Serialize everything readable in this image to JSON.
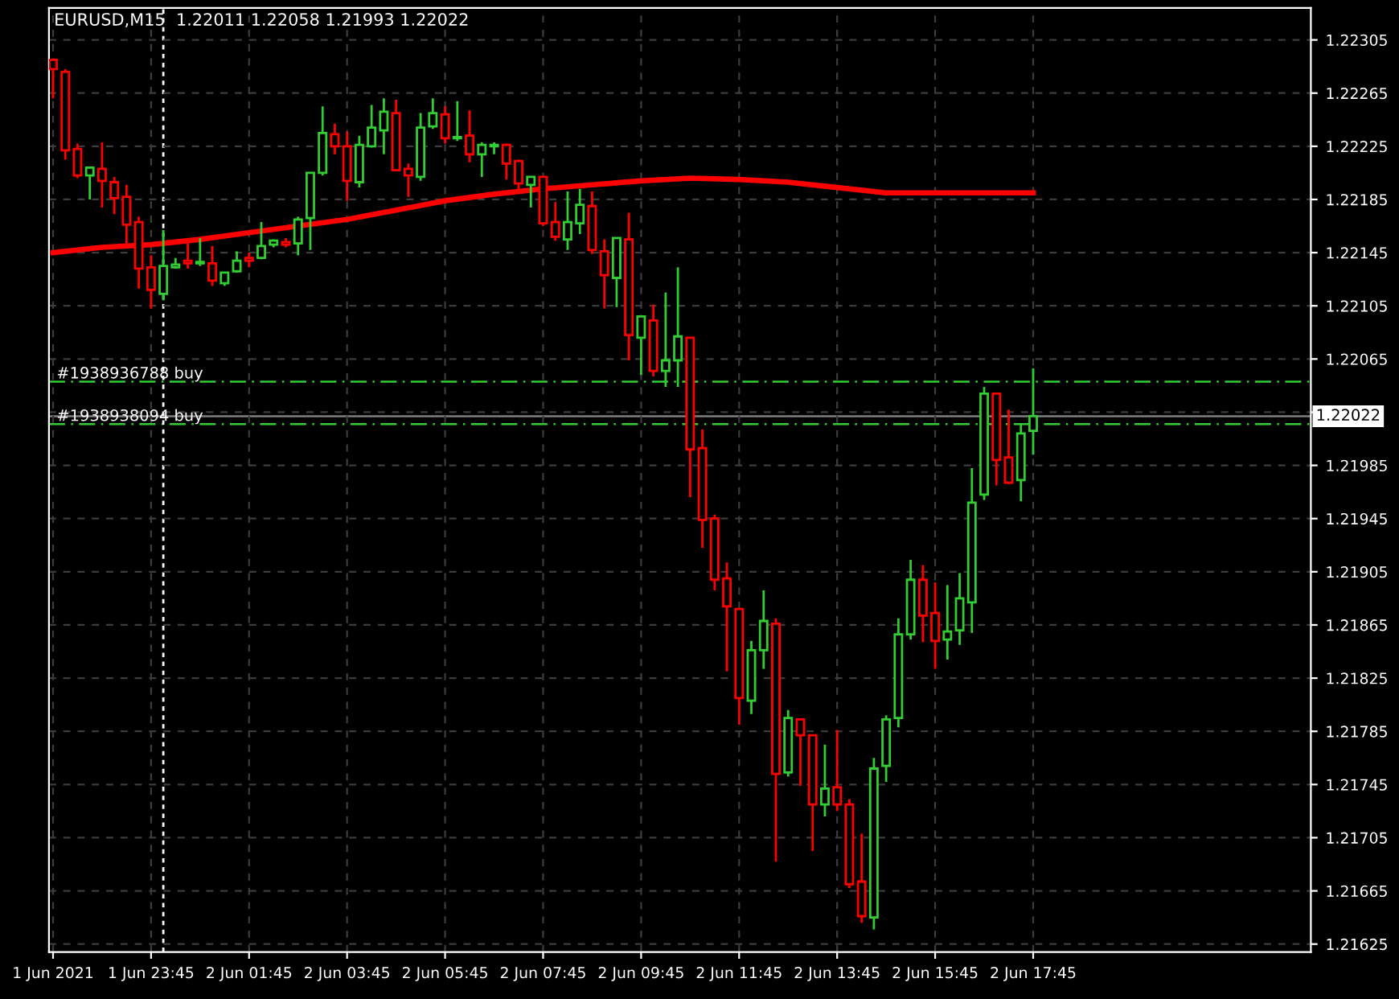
{
  "chart_data": {
    "type": "candlestick",
    "title": "EURUSD,M15  1.22011 1.22058 1.21993 1.22022",
    "x": [
      "2021-06-01T21:45",
      "2021-06-01T22:00",
      "2021-06-01T22:15",
      "2021-06-01T22:30",
      "2021-06-01T22:45",
      "2021-06-01T23:00",
      "2021-06-01T23:15",
      "2021-06-01T23:30",
      "2021-06-01T23:45",
      "2021-06-02T00:00",
      "2021-06-02T00:15",
      "2021-06-02T00:30",
      "2021-06-02T00:45",
      "2021-06-02T01:00",
      "2021-06-02T01:15",
      "2021-06-02T01:30",
      "2021-06-02T01:45",
      "2021-06-02T02:00",
      "2021-06-02T02:15",
      "2021-06-02T02:30",
      "2021-06-02T02:45",
      "2021-06-02T03:00",
      "2021-06-02T03:15",
      "2021-06-02T03:30",
      "2021-06-02T03:45",
      "2021-06-02T04:00",
      "2021-06-02T04:15",
      "2021-06-02T04:30",
      "2021-06-02T04:45",
      "2021-06-02T05:00",
      "2021-06-02T05:15",
      "2021-06-02T05:30",
      "2021-06-02T05:45",
      "2021-06-02T06:00",
      "2021-06-02T06:15",
      "2021-06-02T06:30",
      "2021-06-02T06:45",
      "2021-06-02T07:00",
      "2021-06-02T07:15",
      "2021-06-02T07:30",
      "2021-06-02T07:45",
      "2021-06-02T08:00",
      "2021-06-02T08:15",
      "2021-06-02T08:30",
      "2021-06-02T08:45",
      "2021-06-02T09:00",
      "2021-06-02T09:15",
      "2021-06-02T09:30",
      "2021-06-02T09:45",
      "2021-06-02T10:00",
      "2021-06-02T10:15",
      "2021-06-02T10:30",
      "2021-06-02T10:45",
      "2021-06-02T11:00",
      "2021-06-02T11:15",
      "2021-06-02T11:30",
      "2021-06-02T11:45",
      "2021-06-02T12:00",
      "2021-06-02T12:15",
      "2021-06-02T12:30",
      "2021-06-02T12:45",
      "2021-06-02T13:00",
      "2021-06-02T13:15",
      "2021-06-02T13:30",
      "2021-06-02T13:45",
      "2021-06-02T14:00",
      "2021-06-02T14:15",
      "2021-06-02T14:30",
      "2021-06-02T14:45",
      "2021-06-02T15:00",
      "2021-06-02T15:15",
      "2021-06-02T15:30",
      "2021-06-02T15:45",
      "2021-06-02T16:00",
      "2021-06-02T16:15",
      "2021-06-02T16:30",
      "2021-06-02T16:45",
      "2021-06-02T17:00",
      "2021-06-02T17:15",
      "2021-06-02T17:30",
      "2021-06-02T17:45"
    ],
    "ohlc": [
      [
        1.2229,
        1.22291,
        1.22261,
        1.22283
      ],
      [
        1.22281,
        1.22283,
        1.22215,
        1.22222
      ],
      [
        1.22223,
        1.22227,
        1.22201,
        1.22203
      ],
      [
        1.22203,
        1.22209,
        1.22185,
        1.22209
      ],
      [
        1.22208,
        1.22228,
        1.22179,
        1.22199
      ],
      [
        1.22198,
        1.22202,
        1.22174,
        1.22186
      ],
      [
        1.22187,
        1.22196,
        1.22151,
        1.22166
      ],
      [
        1.22168,
        1.22172,
        1.22118,
        1.22133
      ],
      [
        1.22134,
        1.22143,
        1.22103,
        1.22117
      ],
      [
        1.22114,
        1.22162,
        1.22109,
        1.22135
      ],
      [
        1.22134,
        1.22141,
        1.22133,
        1.22136
      ],
      [
        1.22139,
        1.22155,
        1.22133,
        1.22137
      ],
      [
        1.22137,
        1.22156,
        1.22135,
        1.22138
      ],
      [
        1.22137,
        1.2215,
        1.2212,
        1.22124
      ],
      [
        1.22122,
        1.2213,
        1.2212,
        1.2213
      ],
      [
        1.22131,
        1.22146,
        1.2213,
        1.22139
      ],
      [
        1.22141,
        1.22145,
        1.22134,
        1.22139
      ],
      [
        1.22141,
        1.22168,
        1.2214,
        1.2215
      ],
      [
        1.22151,
        1.22155,
        1.22149,
        1.22154
      ],
      [
        1.22153,
        1.22156,
        1.22149,
        1.22151
      ],
      [
        1.22152,
        1.22172,
        1.22143,
        1.2217
      ],
      [
        1.22171,
        1.22205,
        1.22147,
        1.22205
      ],
      [
        1.22205,
        1.22255,
        1.22203,
        1.22235
      ],
      [
        1.22234,
        1.22242,
        1.22219,
        1.22225
      ],
      [
        1.22225,
        1.22236,
        1.22184,
        1.22199
      ],
      [
        1.22198,
        1.22233,
        1.22194,
        1.22226
      ],
      [
        1.22225,
        1.22256,
        1.22224,
        1.22239
      ],
      [
        1.22237,
        1.22261,
        1.22219,
        1.22251
      ],
      [
        1.2225,
        1.2226,
        1.22207,
        1.22207
      ],
      [
        1.22208,
        1.22212,
        1.22187,
        1.22203
      ],
      [
        1.22202,
        1.2225,
        1.22199,
        1.22239
      ],
      [
        1.2224,
        1.22261,
        1.22238,
        1.2225
      ],
      [
        1.22249,
        1.22255,
        1.22227,
        1.22231
      ],
      [
        1.22231,
        1.22259,
        1.22229,
        1.22232
      ],
      [
        1.22233,
        1.22252,
        1.22213,
        1.22219
      ],
      [
        1.22219,
        1.22228,
        1.22202,
        1.22226
      ],
      [
        1.22225,
        1.22228,
        1.22219,
        1.22226
      ],
      [
        1.22226,
        1.22227,
        1.222,
        1.22212
      ],
      [
        1.22214,
        1.22215,
        1.22192,
        1.22197
      ],
      [
        1.22196,
        1.22202,
        1.22179,
        1.22202
      ],
      [
        1.22202,
        1.22203,
        1.22165,
        1.22167
      ],
      [
        1.22168,
        1.22183,
        1.22154,
        1.22157
      ],
      [
        1.22155,
        1.22191,
        1.22147,
        1.22168
      ],
      [
        1.22167,
        1.22193,
        1.22159,
        1.22181
      ],
      [
        1.2218,
        1.22191,
        1.22144,
        1.22147
      ],
      [
        1.22146,
        1.22155,
        1.22103,
        1.22128
      ],
      [
        1.22126,
        1.22156,
        1.22104,
        1.22156
      ],
      [
        1.22155,
        1.22175,
        1.22064,
        1.22083
      ],
      [
        1.22081,
        1.22098,
        1.22053,
        1.22097
      ],
      [
        1.22094,
        1.22106,
        1.22052,
        1.22056
      ],
      [
        1.22056,
        1.22115,
        1.22044,
        1.22064
      ],
      [
        1.22064,
        1.22134,
        1.22044,
        1.22082
      ],
      [
        1.22081,
        1.22081,
        1.21961,
        1.21997
      ],
      [
        1.21998,
        1.22012,
        1.21923,
        1.21944
      ],
      [
        1.21945,
        1.21948,
        1.21891,
        1.21899
      ],
      [
        1.219,
        1.21912,
        1.2183,
        1.21879
      ],
      [
        1.21877,
        1.21877,
        1.2179,
        1.2181
      ],
      [
        1.21808,
        1.21853,
        1.21798,
        1.21846
      ],
      [
        1.21846,
        1.21891,
        1.21832,
        1.21868
      ],
      [
        1.21866,
        1.2187,
        1.21687,
        1.21753
      ],
      [
        1.21754,
        1.21801,
        1.21751,
        1.21795
      ],
      [
        1.21794,
        1.21794,
        1.21744,
        1.21782
      ],
      [
        1.21782,
        1.21782,
        1.21695,
        1.2173
      ],
      [
        1.2173,
        1.21775,
        1.21721,
        1.21742
      ],
      [
        1.21743,
        1.21786,
        1.21725,
        1.2173
      ],
      [
        1.2173,
        1.21734,
        1.21667,
        1.2167
      ],
      [
        1.21672,
        1.21708,
        1.21641,
        1.21646
      ],
      [
        1.21645,
        1.21765,
        1.21636,
        1.21757
      ],
      [
        1.21759,
        1.21797,
        1.21747,
        1.21794
      ],
      [
        1.21795,
        1.2187,
        1.21788,
        1.21858
      ],
      [
        1.21858,
        1.21914,
        1.21854,
        1.21899
      ],
      [
        1.21899,
        1.2191,
        1.21852,
        1.21872
      ],
      [
        1.21874,
        1.21897,
        1.21832,
        1.21853
      ],
      [
        1.21854,
        1.21895,
        1.21839,
        1.2186
      ],
      [
        1.21861,
        1.21904,
        1.2185,
        1.21885
      ],
      [
        1.21882,
        1.21983,
        1.21859,
        1.21957
      ],
      [
        1.21963,
        1.22044,
        1.21959,
        1.22039
      ],
      [
        1.22039,
        1.22039,
        1.2197,
        1.21989
      ],
      [
        1.21991,
        1.22027,
        1.21971,
        1.21972
      ],
      [
        1.21974,
        1.22016,
        1.21958,
        1.22009
      ],
      [
        1.22011,
        1.22058,
        1.21993,
        1.22022
      ]
    ],
    "colors": [
      "#ff0000",
      "#ff0000",
      "#ff0000",
      "#32cd32",
      "#ff0000",
      "#ff0000",
      "#ff0000",
      "#ff0000",
      "#ff0000",
      "#32cd32",
      "#32cd32",
      "#ff0000",
      "#32cd32",
      "#ff0000",
      "#32cd32",
      "#32cd32",
      "#ff0000",
      "#32cd32",
      "#32cd32",
      "#ff0000",
      "#32cd32",
      "#32cd32",
      "#32cd32",
      "#ff0000",
      "#ff0000",
      "#32cd32",
      "#32cd32",
      "#32cd32",
      "#ff0000",
      "#ff0000",
      "#32cd32",
      "#32cd32",
      "#ff0000",
      "#32cd32",
      "#ff0000",
      "#32cd32",
      "#32cd32",
      "#ff0000",
      "#ff0000",
      "#32cd32",
      "#ff0000",
      "#ff0000",
      "#32cd32",
      "#32cd32",
      "#ff0000",
      "#ff0000",
      "#32cd32",
      "#ff0000",
      "#32cd32",
      "#ff0000",
      "#32cd32",
      "#32cd32",
      "#ff0000",
      "#ff0000",
      "#ff0000",
      "#ff0000",
      "#ff0000",
      "#32cd32",
      "#32cd32",
      "#ff0000",
      "#32cd32",
      "#ff0000",
      "#ff0000",
      "#32cd32",
      "#ff0000",
      "#ff0000",
      "#ff0000",
      "#32cd32",
      "#32cd32",
      "#32cd32",
      "#32cd32",
      "#ff0000",
      "#ff0000",
      "#32cd32",
      "#32cd32",
      "#32cd32",
      "#32cd32",
      "#ff0000",
      "#ff0000",
      "#32cd32",
      "#32cd32"
    ],
    "series": [
      {
        "type": "line",
        "color": "#ff0000",
        "x": [
          "2021-06-01T21:45",
          "2021-06-01T22:45",
          "2021-06-01T23:45",
          "2021-06-02T00:45",
          "2021-06-02T01:45",
          "2021-06-02T02:45",
          "2021-06-02T03:45",
          "2021-06-02T04:45",
          "2021-06-02T05:45",
          "2021-06-02T06:45",
          "2021-06-02T07:45",
          "2021-06-02T08:45",
          "2021-06-02T09:45",
          "2021-06-02T10:45",
          "2021-06-02T11:45",
          "2021-06-02T12:45",
          "2021-06-02T13:45",
          "2021-06-02T14:45",
          "2021-06-02T15:45",
          "2021-06-02T16:45",
          "2021-06-02T17:45"
        ],
        "values": [
          1.22145,
          1.22149,
          1.22151,
          1.22155,
          1.2216,
          1.22165,
          1.2217,
          1.22177,
          1.22184,
          1.22189,
          1.22193,
          1.22196,
          1.22199,
          1.22201,
          1.222,
          1.22198,
          1.22194,
          1.2219,
          1.2219,
          1.2219,
          1.2219
        ]
      }
    ],
    "xlim": [
      "2021-06-01T21:40",
      "2021-06-02T23:25"
    ],
    "xticks": [
      {
        "value": "2021-06-01T21:45",
        "label": "1 Jun 2021"
      },
      {
        "value": "2021-06-01T23:45",
        "label": "1 Jun 23:45"
      },
      {
        "value": "2021-06-02T01:45",
        "label": "2 Jun 01:45"
      },
      {
        "value": "2021-06-02T03:45",
        "label": "2 Jun 03:45"
      },
      {
        "value": "2021-06-02T05:45",
        "label": "2 Jun 05:45"
      },
      {
        "value": "2021-06-02T07:45",
        "label": "2 Jun 07:45"
      },
      {
        "value": "2021-06-02T09:45",
        "label": "2 Jun 09:45"
      },
      {
        "value": "2021-06-02T11:45",
        "label": "2 Jun 11:45"
      },
      {
        "value": "2021-06-02T13:45",
        "label": "2 Jun 13:45"
      },
      {
        "value": "2021-06-02T15:45",
        "label": "2 Jun 15:45"
      },
      {
        "value": "2021-06-02T17:45",
        "label": "2 Jun 17:45"
      }
    ],
    "ylim": [
      1.21619,
      1.22329
    ],
    "yticks": [
      1.21625,
      1.21665,
      1.21705,
      1.21745,
      1.21785,
      1.21825,
      1.21865,
      1.21905,
      1.21945,
      1.21985,
      {
        "value": 1.22025,
        "label": null
      },
      1.22065,
      1.22105,
      1.22145,
      1.22185,
      1.22225,
      1.22265,
      1.22305
    ],
    "grid": true,
    "ref_lines": [
      {
        "axis": "y",
        "value": 1.22048,
        "label": "#1938936788 buy",
        "color": "#32cd32",
        "line_style": "dashed"
      },
      {
        "axis": "y",
        "value": 1.22016,
        "label": "#1938938094 buy",
        "color": "#32cd32",
        "line_style": "dashed"
      },
      {
        "axis": "y",
        "value": 1.22022,
        "label": "1.22022",
        "color": "#808080",
        "line_style": "solid"
      },
      {
        "axis": "x",
        "value": "2021-06-02T00:00",
        "color": "#ffffff",
        "line_style": "dotted"
      }
    ]
  }
}
